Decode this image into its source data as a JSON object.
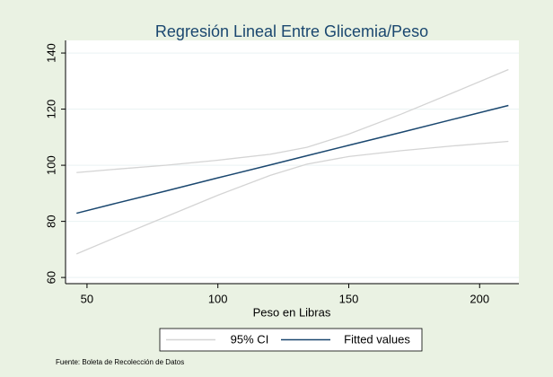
{
  "chart_data": {
    "type": "line",
    "title": "Regresión Lineal Entre Glicemia/Peso",
    "x_label": "Peso en Libras",
    "note": "Fuente: Boleta de Recolección de Datos",
    "x": [
      46,
      60,
      80,
      100,
      120,
      134,
      150,
      170,
      190,
      211
    ],
    "series": [
      {
        "name": "95% CI",
        "color": "#d4d4d4",
        "values": [
          97.4,
          98.5,
          100.0,
          101.8,
          103.9,
          106.4,
          111.1,
          118.2,
          125.9,
          134.1
        ],
        "lower": [
          68.4,
          73.9,
          81.6,
          89.3,
          96.4,
          100.4,
          103.1,
          105.2,
          106.9,
          108.5
        ]
      },
      {
        "name": "Fitted values",
        "color": "#1a476f",
        "values": [
          82.9,
          86.2,
          90.8,
          95.5,
          100.1,
          103.4,
          107.1,
          111.7,
          116.4,
          121.3
        ]
      }
    ],
    "xlim": [
      41.8,
      215
    ],
    "xticks": [
      50,
      100,
      150,
      200
    ],
    "ylim": [
      57.8,
      144.5
    ],
    "yticks": [
      60,
      80,
      100,
      120,
      140
    ],
    "grid": true,
    "legend": "bottom"
  }
}
